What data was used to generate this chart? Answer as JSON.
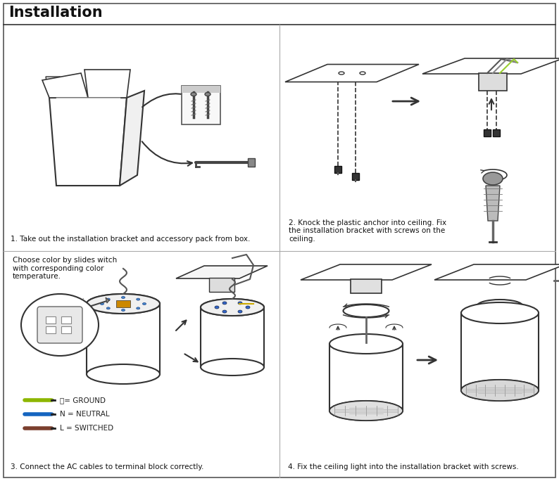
{
  "title": "Installation",
  "title_fontsize": 15,
  "title_fontweight": "bold",
  "bg": "#ffffff",
  "border": "#444444",
  "lc": "#333333",
  "step1": "1. Take out the installation bracket and accessory pack from box.",
  "step2": "2. Knock the plastic anchor into ceiling. Fix\nthe installation bracket with screws on the\nceiling.",
  "step3_note": "Choose color by slides witch\nwith corresponding color\ntemperature.",
  "step3": "3. Connect the AC cables to terminal block correctly.",
  "step4": "4. Fix the ceiling light into the installation bracket with screws.",
  "wires": [
    {
      "color": "#7B3F2E",
      "label": "L = SWITCHED"
    },
    {
      "color": "#1565C0",
      "label": "N = NEUTRAL"
    },
    {
      "color": "#8DB600",
      "label": "ⓘ= GROUND"
    }
  ]
}
